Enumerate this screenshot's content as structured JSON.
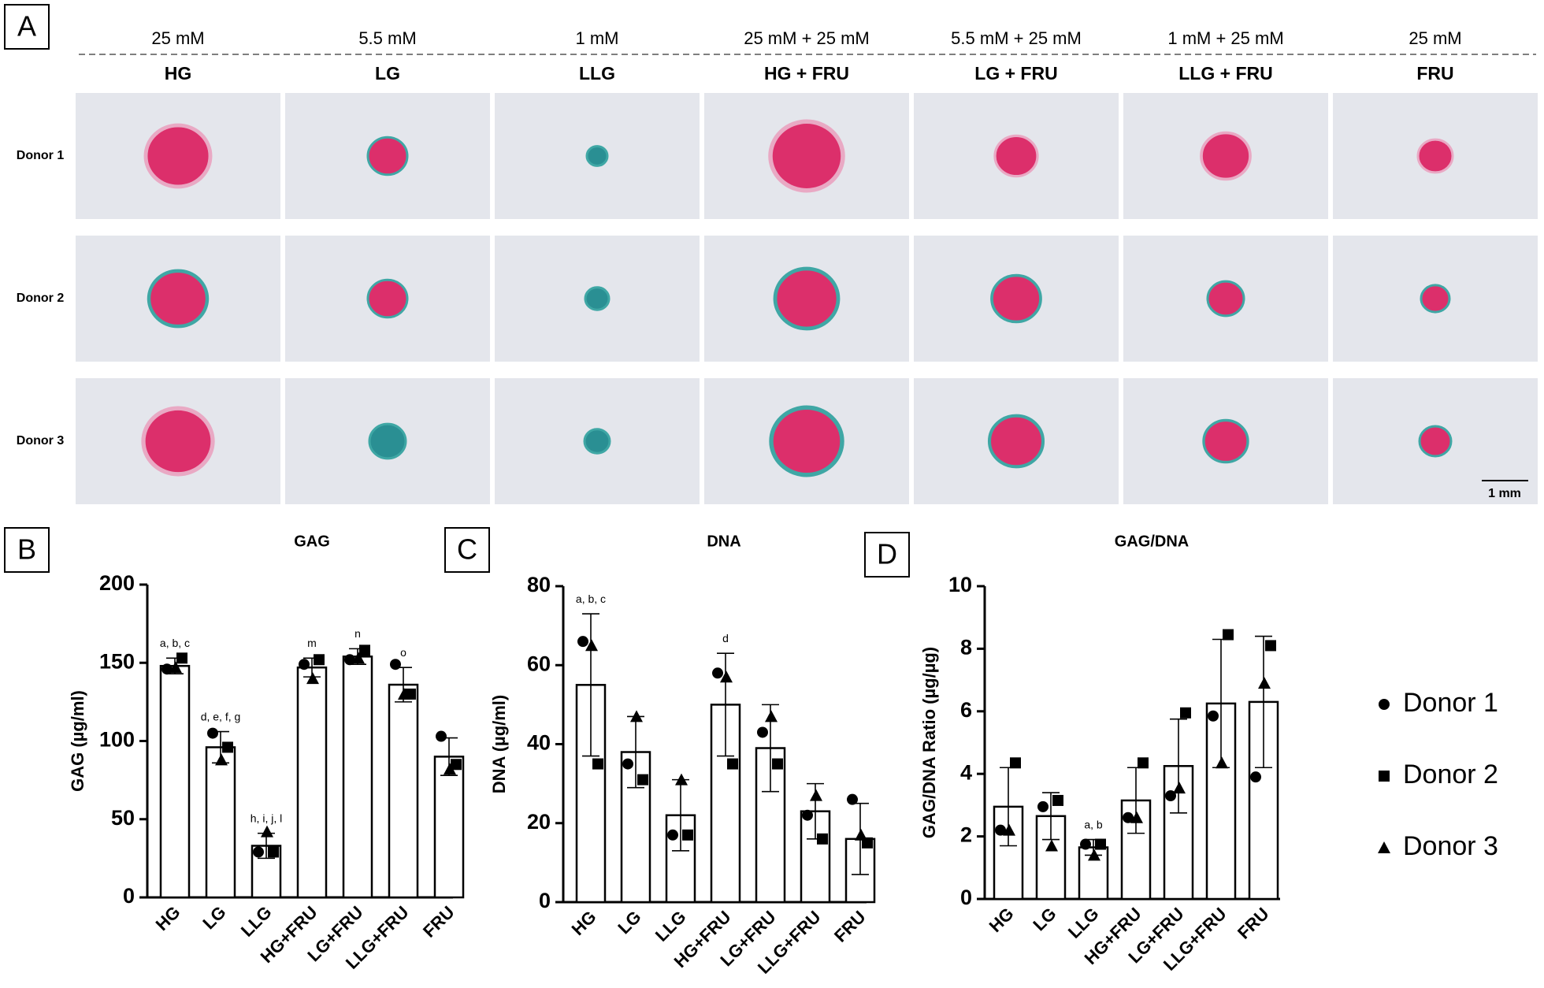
{
  "histology": {
    "label": "A",
    "concentrations": [
      "25 mM",
      "5.5 mM",
      "1 mM",
      "25 mM + 25 mM",
      "5.5 mM + 25 mM",
      "1 mM + 25 mM",
      "25 mM"
    ],
    "groups": [
      "HG",
      "LG",
      "LLG",
      "HG + FRU",
      "LG + FRU",
      "LLG + FRU",
      "FRU"
    ],
    "donors": [
      "Donor 1",
      "Donor 2",
      "Donor 3"
    ],
    "scale_bar": "1 mm"
  },
  "chart_data": [
    {
      "type": "bar",
      "panel": "B",
      "title": "GAG",
      "y_label": "GAG (µg/ml)",
      "color": "#ffffff",
      "categories": [
        "HG",
        "LG",
        "LLG",
        "HG+FRU",
        "LG+FRU",
        "LLG+FRU",
        "FRU"
      ],
      "values": [
        148,
        96,
        33,
        147,
        154,
        136,
        90
      ],
      "errors": [
        5,
        10,
        8,
        6,
        5,
        11,
        12
      ],
      "annotations": [
        "a, b, c",
        "d, e, f, g",
        "h, i, j, l",
        "m",
        "n",
        "o",
        null
      ],
      "series": [
        {
          "marker": "circle",
          "values": [
            146,
            105,
            29,
            149,
            152,
            149,
            103
          ]
        },
        {
          "marker": "square",
          "values": [
            153,
            96,
            29,
            152,
            158,
            130,
            85
          ]
        },
        {
          "marker": "triangle",
          "values": [
            147,
            88,
            42,
            140,
            153,
            130,
            82
          ]
        }
      ],
      "ylim": [
        0,
        200
      ],
      "yticks": [
        0,
        50,
        100,
        150,
        200
      ]
    },
    {
      "type": "bar",
      "panel": "C",
      "title": "DNA",
      "y_label": "DNA (µg/ml)",
      "color": "#ffffff",
      "categories": [
        "HG",
        "LG",
        "LLG",
        "HG+FRU",
        "LG+FRU",
        "LLG+FRU",
        "FRU"
      ],
      "values": [
        55,
        38,
        22,
        50,
        39,
        23,
        16
      ],
      "errors": [
        18,
        9,
        9,
        13,
        11,
        7,
        9
      ],
      "annotations": [
        "a, b, c",
        null,
        null,
        "d",
        null,
        null,
        null
      ],
      "series": [
        {
          "marker": "circle",
          "values": [
            66,
            35,
            17,
            58,
            43,
            22,
            26
          ]
        },
        {
          "marker": "square",
          "values": [
            35,
            31,
            17,
            35,
            35,
            16,
            15
          ]
        },
        {
          "marker": "triangle",
          "values": [
            65,
            47,
            31,
            57,
            47,
            27,
            17
          ]
        }
      ],
      "ylim": [
        0,
        80
      ],
      "yticks": [
        0,
        20,
        40,
        60,
        80
      ]
    },
    {
      "type": "bar",
      "panel": "D",
      "title": "GAG/DNA",
      "y_label": "GAG/DNA Ratio (µg/µg)",
      "color": "#ffffff",
      "categories": [
        "HG",
        "LG",
        "LLG",
        "HG+FRU",
        "LG+FRU",
        "LLG+FRU",
        "FRU"
      ],
      "values": [
        2.95,
        2.65,
        1.65,
        3.15,
        4.25,
        6.25,
        6.3
      ],
      "errors": [
        1.25,
        0.75,
        0.25,
        1.05,
        1.5,
        2.05,
        2.1
      ],
      "annotations": [
        null,
        null,
        "a, b",
        null,
        null,
        null,
        null
      ],
      "series": [
        {
          "name": "Donor 1",
          "marker": "circle",
          "values": [
            2.2,
            2.95,
            1.75,
            2.6,
            3.3,
            5.85,
            3.9
          ]
        },
        {
          "name": "Donor 2",
          "marker": "square",
          "values": [
            4.35,
            3.15,
            1.75,
            4.35,
            5.95,
            8.45,
            8.1
          ]
        },
        {
          "name": "Donor 3",
          "marker": "triangle",
          "values": [
            2.2,
            1.7,
            1.4,
            2.6,
            3.55,
            4.35,
            6.9
          ]
        }
      ],
      "ylim": [
        0,
        10
      ],
      "yticks": [
        0,
        2,
        4,
        6,
        8,
        10
      ]
    }
  ]
}
